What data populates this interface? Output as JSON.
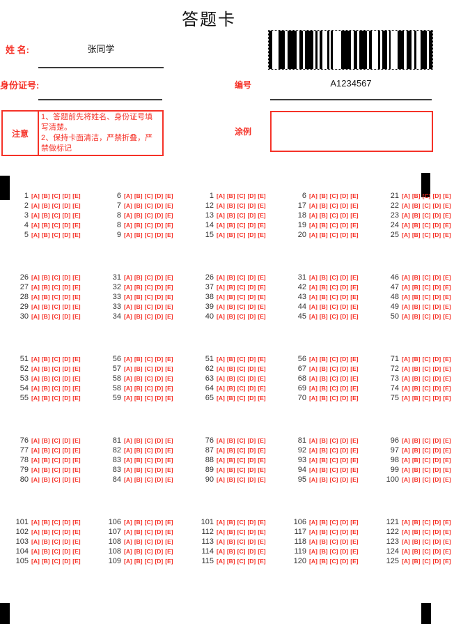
{
  "title": "答题卡",
  "fields": {
    "name_label": "姓 名:",
    "name_value": "张同学",
    "id_label": "身份证号:",
    "id_value": "",
    "number_label": "编号",
    "number_value": "A1234567",
    "notice_label": "注意",
    "notice_lines": [
      "1、答题前先将姓名、身份证号填写清楚。",
      "2、保持卡面清洁，严禁折叠，严禁做标记"
    ],
    "example_label": "涂例"
  },
  "options": [
    "[A]",
    "[B]",
    "[C]",
    "[D]",
    "[E]"
  ],
  "colors": {
    "accent_red": "#f53228",
    "ink": "#333333"
  },
  "barcode": {
    "text": "A1234567",
    "pattern": [
      5,
      11,
      10,
      4,
      14,
      5,
      5,
      3,
      14,
      3,
      4,
      3,
      4,
      8,
      3,
      3,
      3,
      13,
      16,
      4,
      6,
      3,
      12,
      3,
      5,
      10,
      3,
      3,
      8,
      3,
      3,
      11,
      10,
      4,
      8,
      4,
      4,
      6,
      10,
      3,
      6
    ]
  },
  "grid": {
    "blocks": [
      {
        "columns": [
          [
            1,
            2,
            3,
            4,
            5
          ],
          [
            6,
            7,
            8,
            8,
            9
          ],
          [
            1,
            12,
            13,
            14,
            15
          ],
          [
            6,
            17,
            18,
            19,
            20
          ],
          [
            21,
            22,
            23,
            24,
            25
          ]
        ]
      },
      {
        "columns": [
          [
            26,
            27,
            28,
            29,
            30
          ],
          [
            31,
            32,
            33,
            33,
            34
          ],
          [
            26,
            37,
            38,
            39,
            40
          ],
          [
            31,
            42,
            43,
            44,
            45
          ],
          [
            46,
            47,
            48,
            49,
            50
          ]
        ]
      },
      {
        "columns": [
          [
            51,
            52,
            53,
            54,
            55
          ],
          [
            56,
            57,
            58,
            58,
            59
          ],
          [
            51,
            62,
            63,
            64,
            65
          ],
          [
            56,
            67,
            68,
            69,
            70
          ],
          [
            71,
            72,
            73,
            74,
            75
          ]
        ]
      },
      {
        "columns": [
          [
            76,
            77,
            78,
            79,
            80
          ],
          [
            81,
            82,
            83,
            83,
            84
          ],
          [
            76,
            87,
            88,
            89,
            90
          ],
          [
            81,
            92,
            93,
            94,
            95
          ],
          [
            96,
            97,
            98,
            99,
            100
          ]
        ]
      },
      {
        "columns": [
          [
            101,
            102,
            103,
            104,
            105
          ],
          [
            106,
            107,
            108,
            108,
            109
          ],
          [
            101,
            112,
            113,
            114,
            115
          ],
          [
            106,
            117,
            118,
            119,
            120
          ],
          [
            121,
            122,
            123,
            124,
            125
          ]
        ]
      }
    ]
  }
}
